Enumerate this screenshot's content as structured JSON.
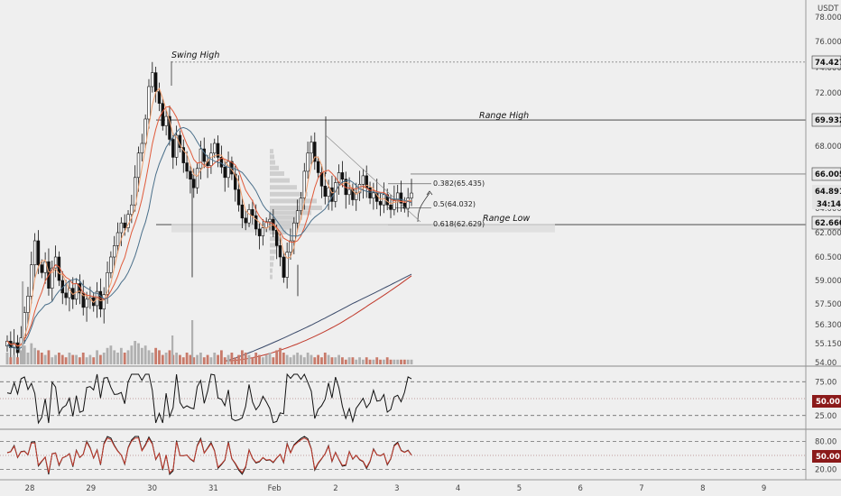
{
  "chart_data": {
    "type": "candlestick",
    "currency": "USDT",
    "price_axis": {
      "min": 54.0,
      "max": 79.0,
      "ticks": [
        "54.00",
        "55.150",
        "56.300",
        "57.500",
        "59.000",
        "60.500",
        "62.000",
        "64.000",
        "66.000",
        "68.000",
        "70.000",
        "72.000",
        "74.000",
        "76.000",
        "78.000"
      ],
      "tick_values": [
        54.0,
        55.15,
        56.3,
        57.5,
        59.0,
        60.5,
        62.0,
        64.0,
        66.0,
        68.0,
        70.0,
        72.0,
        74.0,
        76.0,
        78.0
      ]
    },
    "x_axis": {
      "labels": [
        "28",
        "29",
        "30",
        "31",
        "Feb",
        "2",
        "3",
        "4",
        "5",
        "6",
        "7",
        "8",
        "9"
      ],
      "positions": [
        0,
        1,
        2,
        3,
        4,
        5,
        6,
        7,
        8,
        9,
        10,
        11,
        12
      ]
    },
    "levels": [
      {
        "name": "Swing High",
        "value": 74.427,
        "label": "74.427",
        "style": "dotted",
        "color": "#888888"
      },
      {
        "name": "Range High",
        "value": 69.932,
        "label": "69.932",
        "style": "solid",
        "color": "#333333"
      },
      {
        "name": "",
        "value": 66.005,
        "label": "66.005",
        "style": "solid",
        "color": "#777777"
      },
      {
        "name": "Range Low",
        "value": 62.66,
        "label": "62.660",
        "style": "solid",
        "color": "#333333"
      }
    ],
    "price_badges": [
      {
        "value": 64.891,
        "label": "64.891",
        "bg": "#e4e4e4",
        "color": "#111111"
      },
      {
        "value": 64.05,
        "label": "34:14",
        "bg": "#e4e4e4",
        "color": "#111111"
      }
    ],
    "fib_levels": [
      {
        "label": "0.382(65.435)",
        "value": 65.435
      },
      {
        "label": "0.5(64.032)",
        "value": 64.032
      },
      {
        "label": "0.618(62.629)",
        "value": 62.629
      }
    ],
    "annotations": [
      {
        "text": "Swing High"
      },
      {
        "text": "Range High"
      },
      {
        "text": "Range Low"
      }
    ],
    "close_series": [
      55.3,
      54.9,
      55.2,
      54.6,
      55.5,
      57.0,
      58.0,
      60.0,
      61.5,
      60.0,
      59.5,
      60.2,
      58.5,
      59.8,
      60.5,
      59.0,
      58.2,
      57.9,
      58.5,
      57.8,
      58.8,
      58.2,
      57.3,
      57.8,
      57.9,
      57.4,
      58.3,
      57.2,
      58.1,
      59.5,
      60.5,
      61.2,
      62.0,
      62.8,
      62.4,
      63.5,
      64.2,
      65.8,
      67.5,
      68.2,
      70.0,
      72.5,
      73.6,
      72.1,
      71.2,
      69.5,
      70.2,
      68.5,
      67.2,
      68.8,
      67.9,
      66.8,
      66.2,
      65.7,
      65.2,
      66.4,
      67.8,
      66.9,
      66.6,
      67.5,
      68.2,
      67.2,
      66.5,
      65.8,
      66.9,
      66.0,
      65.1,
      64.2,
      63.2,
      62.8,
      63.9,
      63.4,
      62.3,
      61.8,
      62.4,
      62.9,
      63.1,
      62.2,
      61.2,
      60.5,
      59.2,
      60.8,
      61.5,
      62.8,
      63.8,
      64.6,
      66.2,
      67.5,
      68.3,
      66.9,
      66.1,
      65.3,
      64.7,
      65.2,
      64.4,
      65.5,
      66.1,
      65.7,
      64.8,
      65.1,
      64.5,
      64.9,
      65.4,
      65.9,
      65.2,
      64.6,
      64.9,
      64.4,
      64.2,
      64.8,
      64.2,
      63.9,
      64.5,
      64.9,
      64.3,
      64.0,
      64.6,
      64.891
    ],
    "volume_relative": [
      0.5,
      0.3,
      0.4,
      0.3,
      0.6,
      0.8,
      0.5,
      0.9,
      0.7,
      0.6,
      0.5,
      0.4,
      0.6,
      0.3,
      0.4,
      0.5,
      0.4,
      0.3,
      0.5,
      0.4,
      0.4,
      0.3,
      0.5,
      0.3,
      0.4,
      0.3,
      0.6,
      0.4,
      0.5,
      0.7,
      0.8,
      0.6,
      0.5,
      0.7,
      0.5,
      0.6,
      0.8,
      1.0,
      0.9,
      0.7,
      0.8,
      0.6,
      0.5,
      0.7,
      0.6,
      0.4,
      0.5,
      0.6,
      0.4,
      0.5,
      0.4,
      0.3,
      0.5,
      0.4,
      0.3,
      0.4,
      0.5,
      0.3,
      0.4,
      0.3,
      0.5,
      0.4,
      0.6,
      0.3,
      0.4,
      0.5,
      0.3,
      0.4,
      0.6,
      0.5,
      0.4,
      0.3,
      0.5,
      0.4,
      0.3,
      0.4,
      0.5,
      0.3,
      0.6,
      0.7,
      0.5,
      0.4,
      0.3,
      0.4,
      0.5,
      0.4,
      0.3,
      0.5,
      0.4,
      0.3,
      0.4,
      0.3,
      0.5,
      0.4,
      0.3,
      0.3,
      0.4,
      0.3,
      0.2,
      0.3,
      0.3,
      0.2,
      0.3,
      0.2,
      0.3,
      0.2,
      0.2,
      0.3,
      0.2,
      0.2,
      0.3,
      0.2,
      0.2,
      0.2,
      0.2,
      0.2,
      0.2,
      0.2
    ],
    "indicators": [
      {
        "name": "",
        "type": "oscillator",
        "badge": "50.00",
        "ticks": [
          "75.00",
          "50.00",
          "25.00"
        ],
        "tick_values": [
          75,
          50,
          25
        ],
        "min": 10,
        "max": 90
      },
      {
        "name": "",
        "type": "oscillator",
        "badge": "50.00",
        "ticks": [
          "80.00",
          "50.00",
          "20.00"
        ],
        "tick_values": [
          80,
          50,
          20
        ],
        "min": 5,
        "max": 95
      }
    ],
    "colors": {
      "up": "#ffffff",
      "down": "#111111",
      "ma_fast": "#e05a3a",
      "ma_mid": "#f0a070",
      "ma_slow": "#3a4a6a",
      "ma_long": "#8a9aaa",
      "badge_red": "#8b1a1a"
    }
  }
}
